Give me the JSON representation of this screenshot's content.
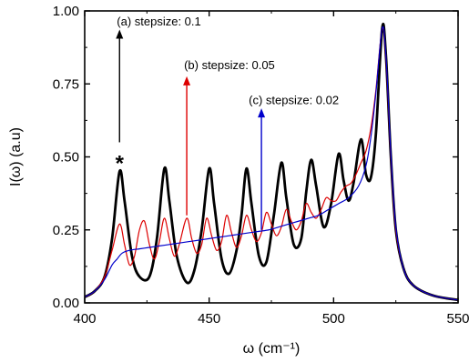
{
  "chart_data": {
    "type": "line",
    "title": "",
    "xlabel": "ω (cm⁻¹)",
    "ylabel": "I(ω) (a.u)",
    "xlim": [
      400,
      550
    ],
    "ylim": [
      0.0,
      1.0
    ],
    "xticks": [
      "400",
      "450",
      "500",
      "550"
    ],
    "xtick_values": [
      400,
      450,
      500,
      550
    ],
    "yticks": [
      "0.00",
      "0.25",
      "0.50",
      "0.75",
      "1.00"
    ],
    "ytick_values": [
      0.0,
      0.25,
      0.5,
      0.75,
      1.0
    ],
    "grid": false,
    "legend": "none",
    "series": [
      {
        "color": "#000000",
        "peaks": [
          414,
          432,
          450,
          465,
          479,
          491,
          502,
          511,
          519.5
        ],
        "values": [
          [
            400,
            0.02
          ],
          [
            404,
            0.04
          ],
          [
            408,
            0.09
          ],
          [
            411,
            0.22
          ],
          [
            414,
            0.45
          ],
          [
            416,
            0.35
          ],
          [
            419,
            0.16
          ],
          [
            422,
            0.09
          ],
          [
            426,
            0.09
          ],
          [
            429,
            0.22
          ],
          [
            432,
            0.46
          ],
          [
            434,
            0.35
          ],
          [
            437,
            0.16
          ],
          [
            441,
            0.07
          ],
          [
            444,
            0.11
          ],
          [
            447,
            0.25
          ],
          [
            450,
            0.46
          ],
          [
            452,
            0.34
          ],
          [
            455,
            0.15
          ],
          [
            458,
            0.1
          ],
          [
            461,
            0.18
          ],
          [
            463,
            0.3
          ],
          [
            465,
            0.46
          ],
          [
            467,
            0.34
          ],
          [
            470,
            0.16
          ],
          [
            473,
            0.14
          ],
          [
            476,
            0.3
          ],
          [
            479,
            0.48
          ],
          [
            481,
            0.36
          ],
          [
            484,
            0.2
          ],
          [
            487,
            0.22
          ],
          [
            489,
            0.38
          ],
          [
            491,
            0.49
          ],
          [
            493,
            0.4
          ],
          [
            496,
            0.26
          ],
          [
            499,
            0.34
          ],
          [
            502,
            0.51
          ],
          [
            504,
            0.42
          ],
          [
            506,
            0.35
          ],
          [
            508,
            0.41
          ],
          [
            511,
            0.56
          ],
          [
            513,
            0.44
          ],
          [
            515,
            0.43
          ],
          [
            517,
            0.58
          ],
          [
            519.5,
            0.94
          ],
          [
            521,
            0.85
          ],
          [
            523,
            0.5
          ],
          [
            525,
            0.25
          ],
          [
            528,
            0.12
          ],
          [
            532,
            0.06
          ],
          [
            540,
            0.025
          ],
          [
            550,
            0.01
          ]
        ]
      },
      {
        "color": "#dd0000",
        "values": [
          [
            400,
            0.02
          ],
          [
            404,
            0.04
          ],
          [
            408,
            0.09
          ],
          [
            411,
            0.18
          ],
          [
            414,
            0.27
          ],
          [
            416,
            0.2
          ],
          [
            418,
            0.13
          ],
          [
            420,
            0.16
          ],
          [
            422,
            0.25
          ],
          [
            424,
            0.28
          ],
          [
            426,
            0.2
          ],
          [
            428,
            0.15
          ],
          [
            430,
            0.21
          ],
          [
            432,
            0.29
          ],
          [
            434,
            0.22
          ],
          [
            436,
            0.16
          ],
          [
            438,
            0.2
          ],
          [
            441,
            0.29
          ],
          [
            443,
            0.22
          ],
          [
            445,
            0.17
          ],
          [
            447,
            0.2
          ],
          [
            449,
            0.29
          ],
          [
            451,
            0.23
          ],
          [
            453,
            0.18
          ],
          [
            455,
            0.21
          ],
          [
            457,
            0.3
          ],
          [
            459,
            0.24
          ],
          [
            461,
            0.19
          ],
          [
            463,
            0.23
          ],
          [
            465,
            0.3
          ],
          [
            467,
            0.25
          ],
          [
            469,
            0.21
          ],
          [
            471,
            0.24
          ],
          [
            473,
            0.31
          ],
          [
            475,
            0.27
          ],
          [
            477,
            0.23
          ],
          [
            479,
            0.26
          ],
          [
            481,
            0.32
          ],
          [
            483,
            0.28
          ],
          [
            485,
            0.25
          ],
          [
            487,
            0.28
          ],
          [
            489,
            0.34
          ],
          [
            491,
            0.31
          ],
          [
            493,
            0.29
          ],
          [
            495,
            0.32
          ],
          [
            497,
            0.36
          ],
          [
            499,
            0.35
          ],
          [
            501,
            0.35
          ],
          [
            503,
            0.38
          ],
          [
            505,
            0.4
          ],
          [
            507,
            0.41
          ],
          [
            509,
            0.44
          ],
          [
            511,
            0.48
          ],
          [
            513,
            0.52
          ],
          [
            515,
            0.6
          ],
          [
            517,
            0.73
          ],
          [
            519.5,
            0.94
          ],
          [
            521,
            0.84
          ],
          [
            523,
            0.5
          ],
          [
            525,
            0.25
          ],
          [
            528,
            0.12
          ],
          [
            532,
            0.06
          ],
          [
            540,
            0.025
          ],
          [
            550,
            0.01
          ]
        ]
      },
      {
        "color": "#0000cc",
        "values": [
          [
            400,
            0.02
          ],
          [
            404,
            0.04
          ],
          [
            408,
            0.08
          ],
          [
            411,
            0.13
          ],
          [
            413,
            0.15
          ],
          [
            415,
            0.17
          ],
          [
            418,
            0.18
          ],
          [
            422,
            0.185
          ],
          [
            426,
            0.19
          ],
          [
            430,
            0.195
          ],
          [
            434,
            0.2
          ],
          [
            438,
            0.205
          ],
          [
            442,
            0.21
          ],
          [
            446,
            0.215
          ],
          [
            450,
            0.22
          ],
          [
            454,
            0.225
          ],
          [
            458,
            0.23
          ],
          [
            462,
            0.235
          ],
          [
            466,
            0.24
          ],
          [
            470,
            0.245
          ],
          [
            474,
            0.25
          ],
          [
            478,
            0.26
          ],
          [
            482,
            0.27
          ],
          [
            486,
            0.28
          ],
          [
            490,
            0.29
          ],
          [
            494,
            0.3
          ],
          [
            498,
            0.32
          ],
          [
            502,
            0.34
          ],
          [
            506,
            0.36
          ],
          [
            510,
            0.4
          ],
          [
            513,
            0.47
          ],
          [
            515,
            0.57
          ],
          [
            517,
            0.72
          ],
          [
            519.5,
            0.94
          ],
          [
            521,
            0.85
          ],
          [
            523,
            0.51
          ],
          [
            525,
            0.26
          ],
          [
            528,
            0.12
          ],
          [
            532,
            0.06
          ],
          [
            540,
            0.025
          ],
          [
            550,
            0.01
          ]
        ]
      }
    ],
    "annotations": [
      {
        "text": "(a) stepsize: 0.1",
        "color": "#000000",
        "arrow_x": 414,
        "arrow_from": 0.55,
        "arrow_to": 0.93,
        "label_x": 414,
        "label_y": 0.95
      },
      {
        "text": "(b) stepsize: 0.05",
        "color": "#dd0000",
        "arrow_x": 441,
        "arrow_from": 0.3,
        "arrow_to": 0.77,
        "label_x": 441,
        "label_y": 0.8
      },
      {
        "text": "(c) stepsize: 0.02",
        "color": "#0000cc",
        "arrow_x": 471,
        "arrow_from": 0.25,
        "arrow_to": 0.66,
        "label_x": 467,
        "label_y": 0.68
      }
    ],
    "marker": {
      "text": "*",
      "x": 414,
      "y": 0.49
    }
  }
}
